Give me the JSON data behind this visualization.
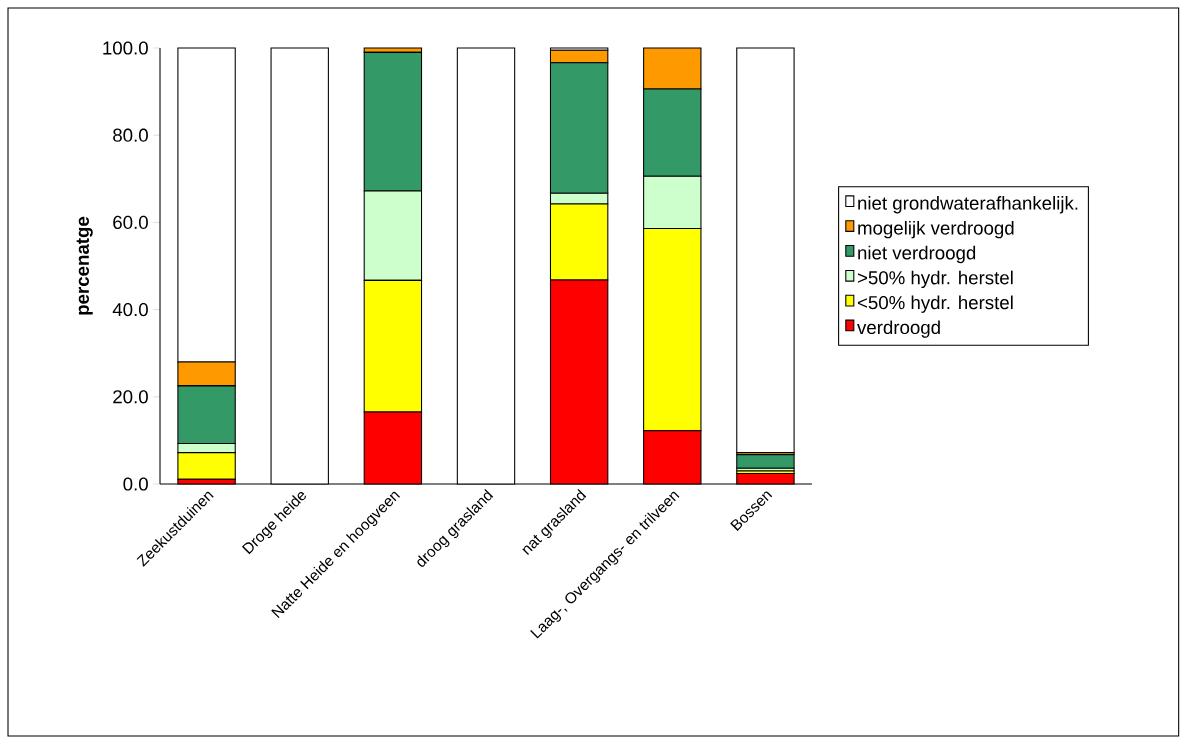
{
  "chart_data": {
    "type": "bar",
    "stacked": true,
    "ylabel": "percenatge",
    "categories": [
      "Zeekustduinen",
      "Droge heide",
      "Natte Heide en hoogveen",
      "droog grasland",
      "nat grasland",
      "Laag-, Overgangs- en trilveen",
      "Bossen"
    ],
    "series": [
      {
        "name": "verdroogd",
        "color": "#ff0000",
        "values": [
          1.1,
          0,
          16.5,
          0,
          46.8,
          12.2,
          2.4
        ]
      },
      {
        "name": "<50% hydr. herstel",
        "color": "#ffff00",
        "values": [
          6.1,
          0,
          30.2,
          0,
          17.4,
          46.4,
          0.6
        ]
      },
      {
        "name": ">50% hydr. herstel",
        "color": "#ccffcc",
        "values": [
          2.1,
          0,
          20.5,
          0,
          2.5,
          12.0,
          0.6
        ]
      },
      {
        "name": "niet verdroogd",
        "color": "#339966",
        "values": [
          13.2,
          0,
          31.8,
          0,
          29.9,
          20.0,
          3.1
        ]
      },
      {
        "name": "mogelijk verdroogd",
        "color": "#ff9900",
        "values": [
          5.5,
          0,
          1.0,
          0,
          2.9,
          9.4,
          0.5
        ]
      },
      {
        "name": "niet grondwaterafhankelijk.",
        "color": "#ffffff",
        "values": [
          72.0,
          100,
          0,
          100,
          0.5,
          0,
          92.8
        ]
      }
    ],
    "ylim": [
      0,
      100
    ],
    "yticks": [
      {
        "value": 0,
        "label": "0.0"
      },
      {
        "value": 20,
        "label": "20.0"
      },
      {
        "value": 40,
        "label": "40.0"
      },
      {
        "value": 60,
        "label": "60.0"
      },
      {
        "value": 80,
        "label": "80.0"
      },
      {
        "value": 100,
        "label": "100.0"
      }
    ],
    "grid": false,
    "legend": "right"
  }
}
